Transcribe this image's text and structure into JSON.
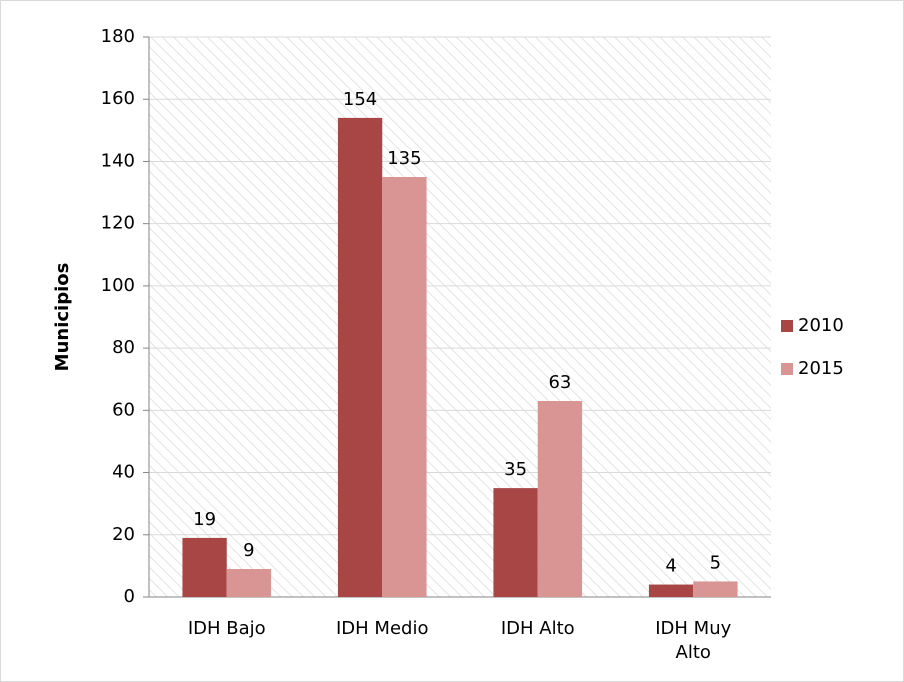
{
  "chart_data": {
    "type": "bar",
    "y_label": "Municipios",
    "categories": [
      "IDH Bajo",
      "IDH Medio",
      "IDH Alto",
      "IDH Muy Alto"
    ],
    "series": [
      {
        "name": "2010",
        "color": "#a84646",
        "values": [
          19,
          154,
          35,
          4
        ]
      },
      {
        "name": "2015",
        "color": "#d99594",
        "values": [
          9,
          135,
          63,
          5
        ]
      }
    ],
    "ylim": [
      0,
      180
    ],
    "yticks": [
      0,
      20,
      40,
      60,
      80,
      100,
      120,
      140,
      160,
      180
    ],
    "grid": true,
    "legend": "right"
  }
}
